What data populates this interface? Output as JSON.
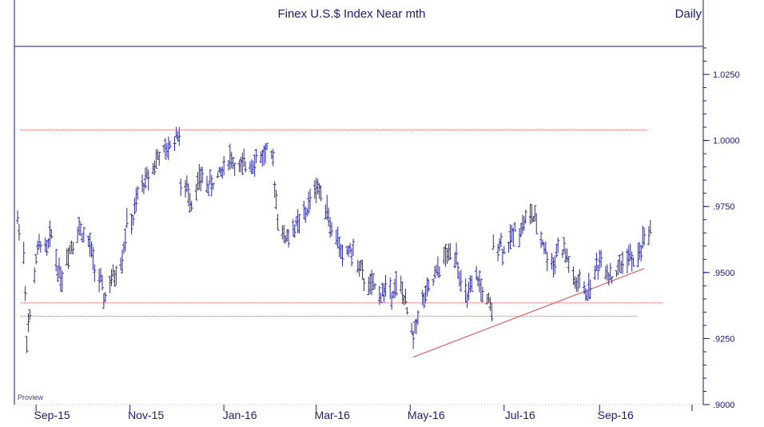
{
  "chart_data": {
    "type": "ohlc",
    "title": "Finex U.S.$ Index Near mth",
    "frequency_label": "Daily",
    "footer_label": "Proview",
    "ylim": [
      0.9,
      1.035
    ],
    "y_ticks": [
      {
        "value": 0.9,
        "label": ".9000"
      },
      {
        "value": 0.925,
        "label": ".9250"
      },
      {
        "value": 0.95,
        "label": ".9500"
      },
      {
        "value": 0.975,
        "label": ".9750"
      },
      {
        "value": 1.0,
        "label": "1.0000"
      },
      {
        "value": 1.025,
        "label": "1.0250"
      }
    ],
    "x_ticks": [
      {
        "date": "2015-09-01",
        "label": "Sep-15"
      },
      {
        "date": "2015-11-01",
        "label": "Nov-15"
      },
      {
        "date": "2016-01-01",
        "label": "Jan-16"
      },
      {
        "date": "2016-03-01",
        "label": "Mar-16"
      },
      {
        "date": "2016-05-01",
        "label": "May-16"
      },
      {
        "date": "2016-07-01",
        "label": "Jul-16"
      },
      {
        "date": "2016-09-01",
        "label": "Sep-16"
      }
    ],
    "xlim": [
      "2015-08-20",
      "2016-10-15"
    ],
    "horizontal_lines": [
      {
        "y": 1.004,
        "color": "#e06060"
      },
      {
        "y": 0.9385,
        "color": "#e06060"
      },
      {
        "y": 0.9335,
        "color": "#e06060"
      }
    ],
    "trend_line": {
      "x1": "2016-05-03",
      "y1": 0.918,
      "x2": "2016-09-30",
      "y2": 0.9515,
      "color": "#e06060"
    },
    "series": [
      {
        "values": [
          {
            "x": "2015-08-20",
            "y": 0.97
          },
          {
            "x": "2015-08-24",
            "y": 0.958
          },
          {
            "x": "2015-08-26",
            "y": 0.926
          },
          {
            "x": "2015-08-28",
            "y": 0.933
          },
          {
            "x": "2015-09-01",
            "y": 0.955
          },
          {
            "x": "2015-09-04",
            "y": 0.962
          },
          {
            "x": "2015-09-08",
            "y": 0.958
          },
          {
            "x": "2015-09-11",
            "y": 0.965
          },
          {
            "x": "2015-09-15",
            "y": 0.952
          },
          {
            "x": "2015-09-18",
            "y": 0.948
          },
          {
            "x": "2015-09-22",
            "y": 0.958
          },
          {
            "x": "2015-09-25",
            "y": 0.962
          },
          {
            "x": "2015-09-29",
            "y": 0.967
          },
          {
            "x": "2015-10-02",
            "y": 0.964
          },
          {
            "x": "2015-10-06",
            "y": 0.96
          },
          {
            "x": "2015-10-09",
            "y": 0.952
          },
          {
            "x": "2015-10-13",
            "y": 0.946
          },
          {
            "x": "2015-10-15",
            "y": 0.94
          },
          {
            "x": "2015-10-20",
            "y": 0.947
          },
          {
            "x": "2015-10-23",
            "y": 0.95
          },
          {
            "x": "2015-10-27",
            "y": 0.956
          },
          {
            "x": "2015-10-30",
            "y": 0.968
          },
          {
            "x": "2015-11-03",
            "y": 0.97
          },
          {
            "x": "2015-11-06",
            "y": 0.979
          },
          {
            "x": "2015-11-10",
            "y": 0.984
          },
          {
            "x": "2015-11-13",
            "y": 0.987
          },
          {
            "x": "2015-11-17",
            "y": 0.991
          },
          {
            "x": "2015-11-20",
            "y": 0.995
          },
          {
            "x": "2015-11-24",
            "y": 0.995
          },
          {
            "x": "2015-11-27",
            "y": 0.998
          },
          {
            "x": "2015-12-01",
            "y": 1.002
          },
          {
            "x": "2015-12-03",
            "y": 1.003
          },
          {
            "x": "2015-12-04",
            "y": 0.98
          },
          {
            "x": "2015-12-08",
            "y": 0.982
          },
          {
            "x": "2015-12-11",
            "y": 0.977
          },
          {
            "x": "2015-12-15",
            "y": 0.984
          },
          {
            "x": "2015-12-18",
            "y": 0.986
          },
          {
            "x": "2015-12-22",
            "y": 0.983
          },
          {
            "x": "2015-12-25",
            "y": 0.984
          },
          {
            "x": "2015-12-29",
            "y": 0.987
          },
          {
            "x": "2016-01-01",
            "y": 0.99
          },
          {
            "x": "2016-01-05",
            "y": 0.994
          },
          {
            "x": "2016-01-08",
            "y": 0.991
          },
          {
            "x": "2016-01-12",
            "y": 0.989
          },
          {
            "x": "2016-01-15",
            "y": 0.991
          },
          {
            "x": "2016-01-19",
            "y": 0.992
          },
          {
            "x": "2016-01-22",
            "y": 0.993
          },
          {
            "x": "2016-01-26",
            "y": 0.994
          },
          {
            "x": "2016-01-29",
            "y": 0.996
          },
          {
            "x": "2016-02-02",
            "y": 0.991
          },
          {
            "x": "2016-02-04",
            "y": 0.978
          },
          {
            "x": "2016-02-05",
            "y": 0.972
          },
          {
            "x": "2016-02-09",
            "y": 0.963
          },
          {
            "x": "2016-02-12",
            "y": 0.964
          },
          {
            "x": "2016-02-16",
            "y": 0.967
          },
          {
            "x": "2016-02-19",
            "y": 0.969
          },
          {
            "x": "2016-02-23",
            "y": 0.972
          },
          {
            "x": "2016-02-26",
            "y": 0.977
          },
          {
            "x": "2016-03-01",
            "y": 0.983
          },
          {
            "x": "2016-03-04",
            "y": 0.98
          },
          {
            "x": "2016-03-08",
            "y": 0.975
          },
          {
            "x": "2016-03-11",
            "y": 0.965
          },
          {
            "x": "2016-03-15",
            "y": 0.963
          },
          {
            "x": "2016-03-18",
            "y": 0.955
          },
          {
            "x": "2016-03-22",
            "y": 0.959
          },
          {
            "x": "2016-03-25",
            "y": 0.957
          },
          {
            "x": "2016-03-29",
            "y": 0.952
          },
          {
            "x": "2016-04-01",
            "y": 0.947
          },
          {
            "x": "2016-04-05",
            "y": 0.945
          },
          {
            "x": "2016-04-08",
            "y": 0.944
          },
          {
            "x": "2016-04-12",
            "y": 0.942
          },
          {
            "x": "2016-04-15",
            "y": 0.944
          },
          {
            "x": "2016-04-19",
            "y": 0.943
          },
          {
            "x": "2016-04-22",
            "y": 0.945
          },
          {
            "x": "2016-04-26",
            "y": 0.943
          },
          {
            "x": "2016-04-29",
            "y": 0.935
          },
          {
            "x": "2016-05-03",
            "y": 0.925
          },
          {
            "x": "2016-05-06",
            "y": 0.935
          },
          {
            "x": "2016-05-10",
            "y": 0.94
          },
          {
            "x": "2016-05-13",
            "y": 0.943
          },
          {
            "x": "2016-05-17",
            "y": 0.948
          },
          {
            "x": "2016-05-20",
            "y": 0.952
          },
          {
            "x": "2016-05-24",
            "y": 0.956
          },
          {
            "x": "2016-05-27",
            "y": 0.957
          },
          {
            "x": "2016-05-31",
            "y": 0.958
          },
          {
            "x": "2016-06-03",
            "y": 0.945
          },
          {
            "x": "2016-06-07",
            "y": 0.94
          },
          {
            "x": "2016-06-10",
            "y": 0.944
          },
          {
            "x": "2016-06-14",
            "y": 0.948
          },
          {
            "x": "2016-06-17",
            "y": 0.942
          },
          {
            "x": "2016-06-21",
            "y": 0.938
          },
          {
            "x": "2016-06-23",
            "y": 0.934
          },
          {
            "x": "2016-06-24",
            "y": 0.96
          },
          {
            "x": "2016-06-28",
            "y": 0.962
          },
          {
            "x": "2016-07-01",
            "y": 0.958
          },
          {
            "x": "2016-07-05",
            "y": 0.962
          },
          {
            "x": "2016-07-08",
            "y": 0.966
          },
          {
            "x": "2016-07-12",
            "y": 0.967
          },
          {
            "x": "2016-07-15",
            "y": 0.97
          },
          {
            "x": "2016-07-19",
            "y": 0.972
          },
          {
            "x": "2016-07-22",
            "y": 0.968
          },
          {
            "x": "2016-07-26",
            "y": 0.962
          },
          {
            "x": "2016-07-29",
            "y": 0.956
          },
          {
            "x": "2016-08-02",
            "y": 0.953
          },
          {
            "x": "2016-08-05",
            "y": 0.96
          },
          {
            "x": "2016-08-09",
            "y": 0.958
          },
          {
            "x": "2016-08-12",
            "y": 0.954
          },
          {
            "x": "2016-08-16",
            "y": 0.945
          },
          {
            "x": "2016-08-19",
            "y": 0.946
          },
          {
            "x": "2016-08-23",
            "y": 0.942
          },
          {
            "x": "2016-08-26",
            "y": 0.945
          },
          {
            "x": "2016-08-30",
            "y": 0.952
          },
          {
            "x": "2016-09-02",
            "y": 0.955
          },
          {
            "x": "2016-09-06",
            "y": 0.951
          },
          {
            "x": "2016-09-09",
            "y": 0.948
          },
          {
            "x": "2016-09-13",
            "y": 0.951
          },
          {
            "x": "2016-09-16",
            "y": 0.954
          },
          {
            "x": "2016-09-20",
            "y": 0.957
          },
          {
            "x": "2016-09-23",
            "y": 0.953
          },
          {
            "x": "2016-09-27",
            "y": 0.958
          },
          {
            "x": "2016-09-30",
            "y": 0.963
          },
          {
            "x": "2016-10-04",
            "y": 0.967
          }
        ]
      }
    ]
  },
  "colors": {
    "ink": "#1a1a7a",
    "bars": "#2a2aa0",
    "reference": "#e06060",
    "grid": "#b4b4c8"
  }
}
